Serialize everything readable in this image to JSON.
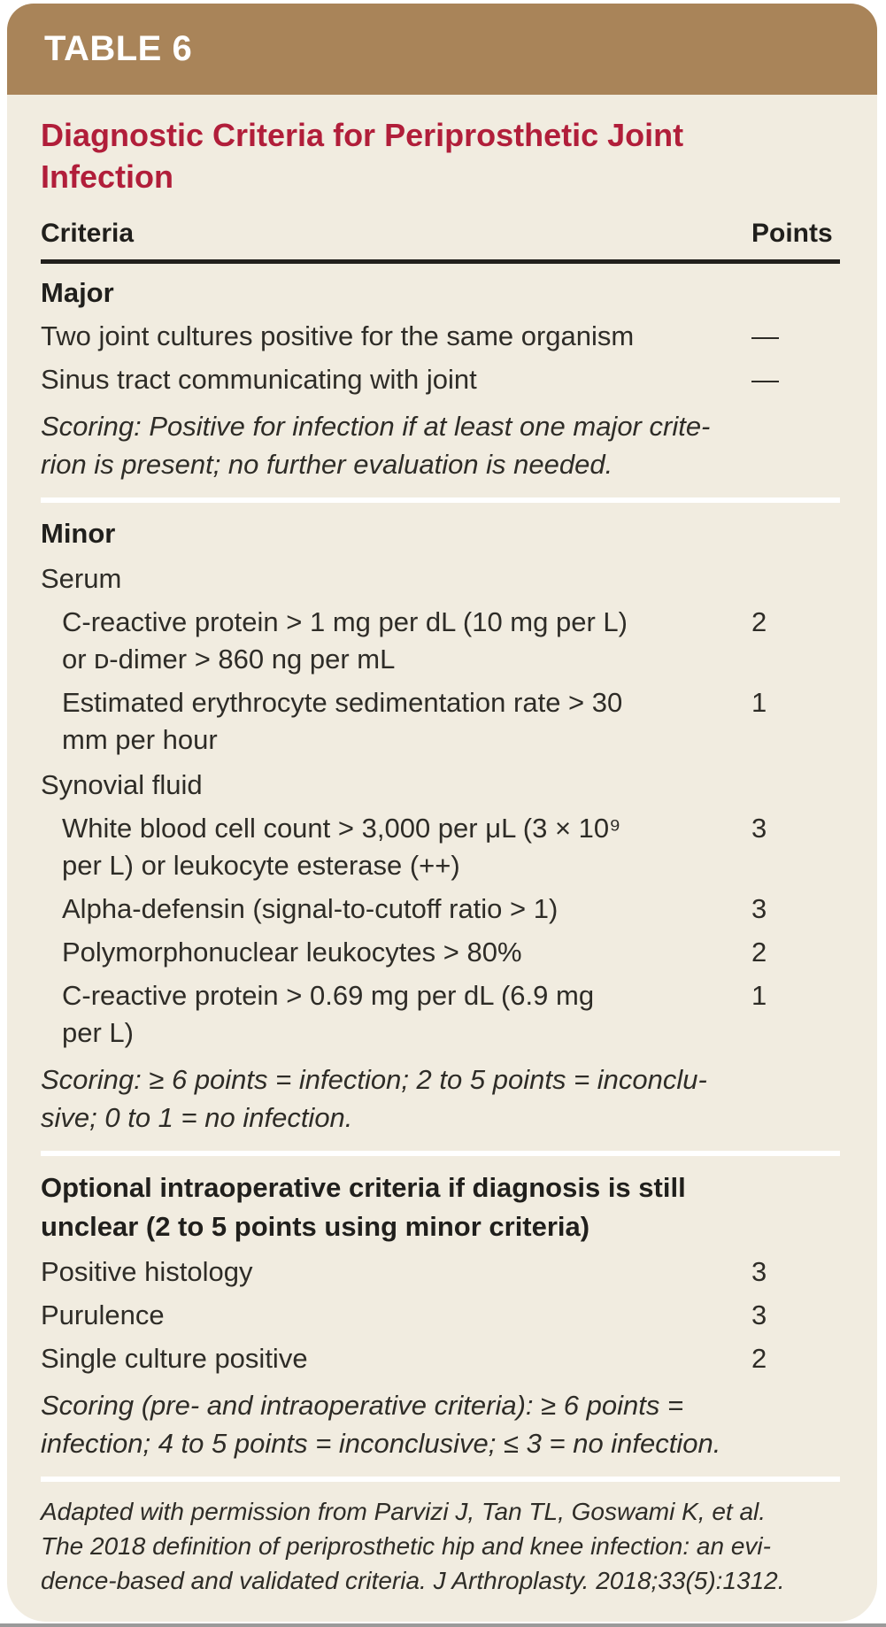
{
  "colors": {
    "header_bar": "#a98459",
    "card_background": "#f1ece0",
    "title_red": "#b11e3a",
    "body_text": "#2e2c27",
    "rule_black": "#22201d",
    "divider_white": "#ffffff"
  },
  "header": {
    "label": "TABLE 6"
  },
  "title": "Diagnostic Criteria for Periprosthetic Joint\nInfection",
  "columns": {
    "criteria": "Criteria",
    "points": "Points"
  },
  "major": {
    "heading": "Major",
    "rows": [
      {
        "text": "Two joint cultures positive for the same organism",
        "points": "—"
      },
      {
        "text": "Sinus tract communicating with joint",
        "points": "—"
      }
    ],
    "note": "Scoring: Positive for infection if at least one major crite-\nrion is present; no further evaluation is needed."
  },
  "minor": {
    "heading": "Minor",
    "serum_label": "Serum",
    "serum_rows": [
      {
        "text": "C-reactive protein > 1 mg per dL (10 mg per L)\nor ᴅ-dimer > 860 ng per mL",
        "points": "2"
      },
      {
        "text": "Estimated erythrocyte sedimentation rate > 30\nmm per hour",
        "points": "1"
      }
    ],
    "synovial_label": "Synovial fluid",
    "synovial_rows": [
      {
        "text": "White blood cell count > 3,000 per μL (3 × 10⁹\nper L) or leukocyte esterase (++)",
        "points": "3"
      },
      {
        "text": "Alpha-defensin (signal-to-cutoff ratio > 1)",
        "points": "3"
      },
      {
        "text": "Polymorphonuclear leukocytes > 80%",
        "points": "2"
      },
      {
        "text": "C-reactive protein > 0.69 mg per dL (6.9 mg\nper L)",
        "points": "1"
      }
    ],
    "note": "Scoring: ≥ 6 points = infection; 2 to 5 points = inconclu-\nsive; 0 to 1 = no infection."
  },
  "optional": {
    "heading": "Optional intraoperative criteria if diagnosis is still\nunclear (2 to 5 points using minor criteria)",
    "rows": [
      {
        "text": "Positive histology",
        "points": "3"
      },
      {
        "text": "Purulence",
        "points": "3"
      },
      {
        "text": "Single culture positive",
        "points": "2"
      }
    ],
    "note": "Scoring (pre- and intraoperative criteria): ≥ 6 points =\ninfection; 4 to 5 points = inconclusive; ≤ 3 = no infection."
  },
  "footnote": "Adapted with permission from Parvizi J, Tan TL, Goswami K, et al.\nThe 2018 definition of periprosthetic hip and knee infection: an evi-\ndence-based and validated criteria. J Arthroplasty. 2018;33(5):1312."
}
